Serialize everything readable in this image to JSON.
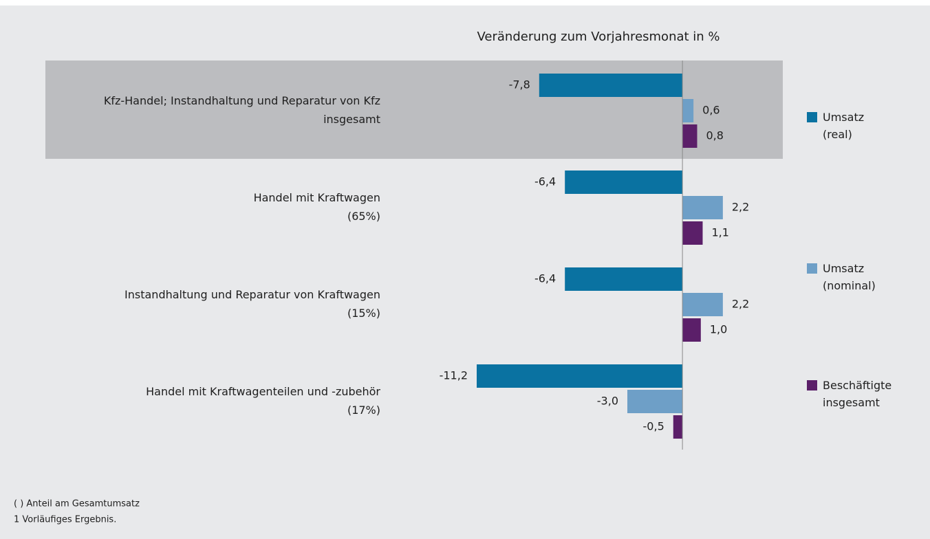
{
  "chart_data": {
    "type": "hbar",
    "title": "Veränderung zum Vorjahresmonat in %",
    "categories": [
      [
        "Kfz-Handel; Instandhaltung und Reparatur von Kfz",
        "insgesamt"
      ],
      [
        "Handel mit Kraftwagen",
        "(65%)"
      ],
      [
        "Instandhaltung und Reparatur von Kraftwagen",
        "(15%)"
      ],
      [
        "Handel mit Kraftwagenteilen und -zubehör",
        "(17%)"
      ]
    ],
    "series": [
      {
        "name": "Umsatz (real)",
        "color": "#0a72a1",
        "values": [
          -7.8,
          -6.4,
          -6.4,
          -11.2
        ],
        "value_labels": [
          "-7,8",
          "-6,4",
          "-6,4",
          "-11,2"
        ]
      },
      {
        "name": "Umsatz (nominal)",
        "color": "#6e9fc7",
        "values": [
          0.6,
          2.2,
          2.2,
          -3.0
        ],
        "value_labels": [
          "0,6",
          "2,2",
          "2,2",
          "-3,0"
        ]
      },
      {
        "name": "Beschäftigte insgesamt",
        "color": "#5b1f69",
        "values": [
          0.8,
          1.1,
          1.0,
          -0.5
        ],
        "value_labels": [
          "0,8",
          "1,1",
          "1,0",
          "-0,5"
        ]
      }
    ],
    "xlim": [
      -11.5,
      5.5
    ],
    "legend": "right",
    "footnotes": [
      "( ) Anteil am Gesamtumsatz",
      "1 Vorläufiges Ergebnis."
    ]
  }
}
